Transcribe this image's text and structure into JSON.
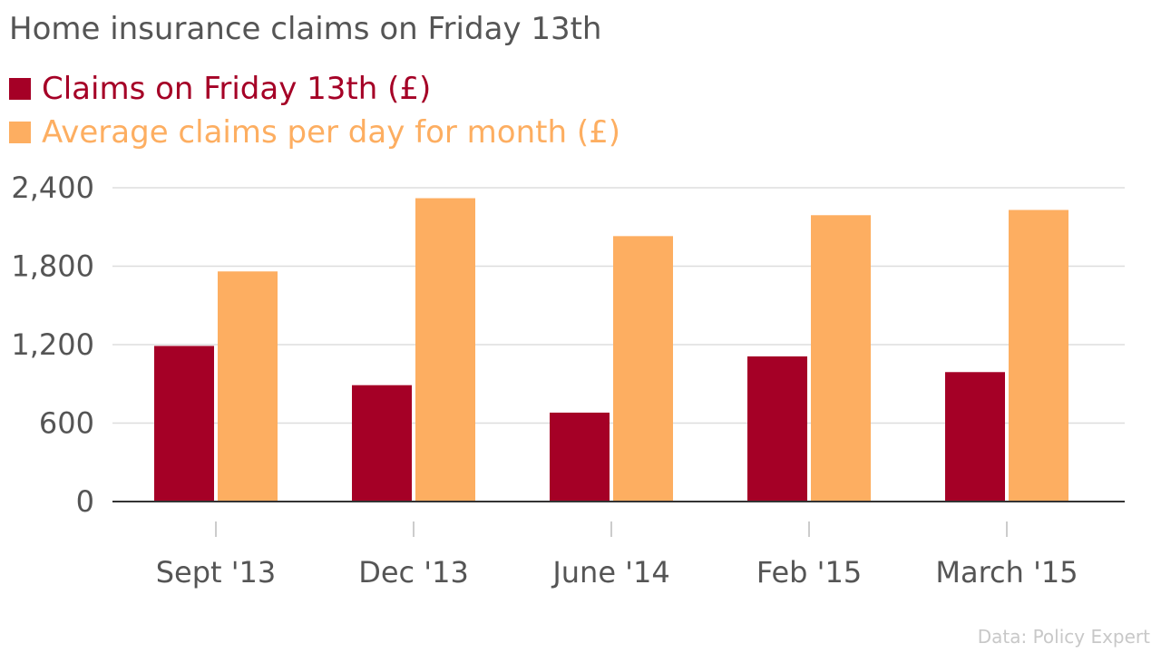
{
  "chart_data": {
    "type": "bar",
    "title": "Home insurance claims on Friday 13th",
    "categories": [
      "Sept '13",
      "Dec '13",
      "June '14",
      "Feb '15",
      "March '15"
    ],
    "series": [
      {
        "name": "Claims on Friday 13th (£)",
        "color": "#a50026",
        "values": [
          1190,
          890,
          680,
          1110,
          990
        ]
      },
      {
        "name": "Average claims per day for month (£)",
        "color": "#fdae61",
        "values": [
          1760,
          2320,
          2030,
          2190,
          2230
        ]
      }
    ],
    "ylim": [
      0,
      2400
    ],
    "yticks": [
      0,
      600,
      1200,
      1800,
      2400
    ],
    "ytick_labels": [
      "0",
      "600",
      "1,200",
      "1,800",
      "2,400"
    ],
    "grid": true,
    "legend_position": "top-left",
    "source": "Data: Policy Expert"
  }
}
